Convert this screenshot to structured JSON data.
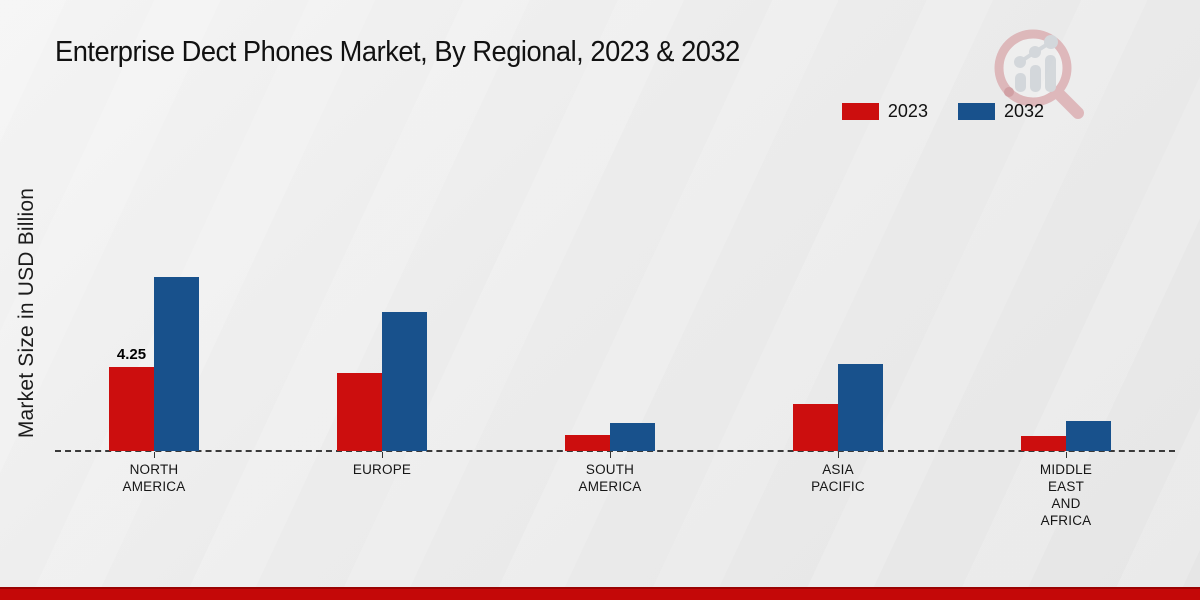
{
  "title": "Enterprise Dect Phones Market, By Regional, 2023 & 2032",
  "y_axis_label": "Market Size in USD Billion",
  "legend": {
    "position": "top-right",
    "items": [
      {
        "label": "2023",
        "color": "#cc0e0e"
      },
      {
        "label": "2032",
        "color": "#18518c"
      }
    ]
  },
  "chart_data": {
    "type": "bar",
    "title": "Enterprise Dect Phones Market, By Regional, 2023 & 2032",
    "ylabel": "Market Size in USD Billion",
    "xlabel": "",
    "categories": [
      "NORTH\nAMERICA",
      "EUROPE",
      "SOUTH\nAMERICA",
      "ASIA\nPACIFIC",
      "MIDDLE\nEAST\nAND\nAFRICA"
    ],
    "series": [
      {
        "name": "2023",
        "color": "#cc0e0e",
        "values": [
          4.25,
          3.95,
          0.8,
          2.4,
          0.75
        ]
      },
      {
        "name": "2032",
        "color": "#18518c",
        "values": [
          8.8,
          7.0,
          1.4,
          4.4,
          1.5
        ]
      }
    ],
    "data_label": {
      "text": "4.25",
      "series_index": 0,
      "category_index": 0
    },
    "baseline_style": "dashed",
    "grid": false,
    "legend_position": "top-right",
    "ylim": [
      0,
      10
    ]
  },
  "footer": {
    "stripe_color": "#c40808"
  },
  "logo": {
    "name": "magnifier-bar-chart-logo",
    "ring_color": "#d9a7ab",
    "bar_color": "#ccd1d6"
  }
}
